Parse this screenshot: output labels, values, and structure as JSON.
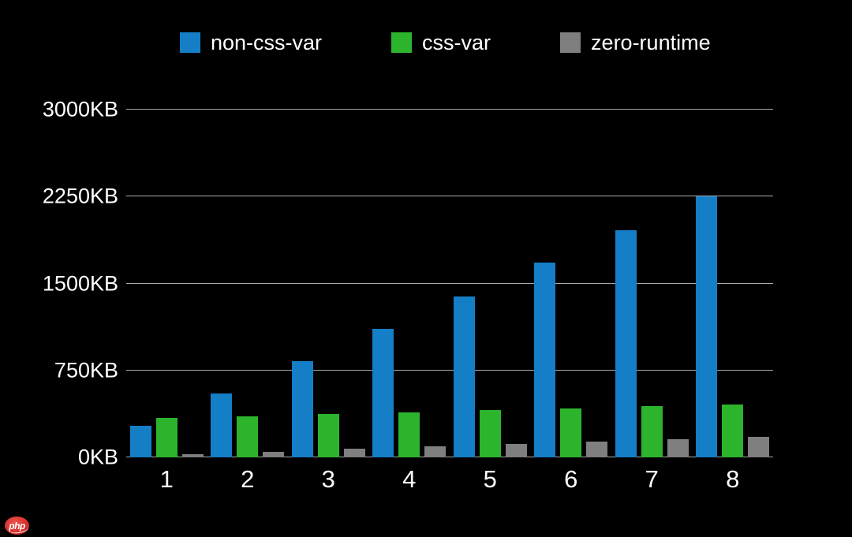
{
  "watermark": {
    "logo_text": "php"
  },
  "chart_data": {
    "type": "bar",
    "title": "",
    "xlabel": "",
    "ylabel": "",
    "unit": "KB",
    "categories": [
      "1",
      "2",
      "3",
      "4",
      "5",
      "6",
      "7",
      "8"
    ],
    "series": [
      {
        "name": "non-css-var",
        "color": "#147fc7",
        "values": [
          270,
          550,
          830,
          1110,
          1390,
          1680,
          1960,
          2250
        ]
      },
      {
        "name": "css-var",
        "color": "#2db42d",
        "values": [
          340,
          355,
          375,
          385,
          405,
          425,
          440,
          455
        ]
      },
      {
        "name": "zero-runtime",
        "color": "#7f7f7f",
        "values": [
          25,
          50,
          75,
          95,
          115,
          135,
          155,
          175
        ]
      }
    ],
    "ylim": [
      0,
      3000
    ],
    "y_ticks": [
      0,
      750,
      1500,
      2250,
      3000
    ],
    "y_tick_labels": [
      "0KB",
      "750KB",
      "1500KB",
      "2250KB",
      "3000KB"
    ],
    "grid": true,
    "legend_position": "top",
    "background_color": "#000000",
    "text_color": "#ffffff",
    "gridline_color": "#a9a9a9"
  }
}
